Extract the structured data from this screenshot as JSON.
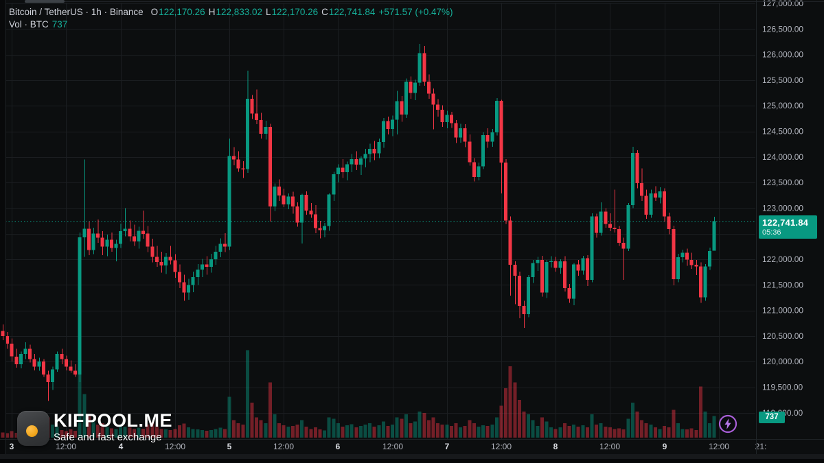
{
  "header": {
    "title": "Bitcoin / TetherUS · 1h · Binance",
    "o_label": "O",
    "o_value": "122,170.26",
    "h_label": "H",
    "h_value": "122,833.02",
    "l_label": "L",
    "l_value": "122,170.26",
    "c_label": "C",
    "c_value": "122,741.84",
    "change": "+571.57 (+0.47%)",
    "vol_label": "Vol · BTC",
    "vol_value": "737"
  },
  "price_badge": {
    "price": "122,741.84",
    "countdown": "05:36"
  },
  "volume_badge": "737",
  "watermark": {
    "brand": "KIFPOOL.ME",
    "tagline": "Safe and fast exchange"
  },
  "colors": {
    "bg": "#0c0e0f",
    "grid": "#1b1e21",
    "up": "#089981",
    "down": "#f23645",
    "vol_up": "rgba(8,153,129,0.45)",
    "vol_down": "rgba(242,54,69,0.45)",
    "axis_text": "#b2b5be",
    "axis_day_text": "#d8dbe0",
    "badge": "#089981",
    "price_line": "#089981",
    "accent_purple": "#a95fd8",
    "watermark_orange": "#f2a71e"
  },
  "chart_data": {
    "type": "candlestick",
    "title": "Bitcoin / TetherUS",
    "exchange": "Binance",
    "interval": "1h",
    "last_price": 122741.84,
    "last_volume_btc": 737,
    "y_axis": {
      "min": 119000,
      "max": 127000,
      "step": 500
    },
    "y_ticks": [
      {
        "v": 127000,
        "label": "127,000.00"
      },
      {
        "v": 126500,
        "label": "126,500.00"
      },
      {
        "v": 126000,
        "label": "126,000.00"
      },
      {
        "v": 125500,
        "label": "125,500.00"
      },
      {
        "v": 125000,
        "label": "125,000.00"
      },
      {
        "v": 124500,
        "label": "124,500.00"
      },
      {
        "v": 124000,
        "label": "124,000.00"
      },
      {
        "v": 123500,
        "label": "123,500.00"
      },
      {
        "v": 123000,
        "label": "123,000.00"
      },
      {
        "v": 122500,
        "label": "122,500.00"
      },
      {
        "v": 122000,
        "label": "122,000.00"
      },
      {
        "v": 121500,
        "label": "121,500.00"
      },
      {
        "v": 121000,
        "label": "121,000.00"
      },
      {
        "v": 120500,
        "label": "120,500.00"
      },
      {
        "v": 120000,
        "label": "120,000.00"
      },
      {
        "v": 119500,
        "label": "119,500.00"
      },
      {
        "v": 119000,
        "label": "119,000.00"
      }
    ],
    "time_ticks": [
      {
        "label": "3",
        "x": 17,
        "day": true,
        "grid": true
      },
      {
        "label": "12:00",
        "x": 96,
        "day": false,
        "grid": true
      },
      {
        "label": "4",
        "x": 176,
        "day": true,
        "grid": true
      },
      {
        "label": "12:00",
        "x": 255,
        "day": false,
        "grid": true
      },
      {
        "label": "5",
        "x": 334,
        "day": true,
        "grid": true
      },
      {
        "label": "12:00",
        "x": 413,
        "day": false,
        "grid": true
      },
      {
        "label": "6",
        "x": 492,
        "day": true,
        "grid": true
      },
      {
        "label": "12:00",
        "x": 572,
        "day": false,
        "grid": true
      },
      {
        "label": "7",
        "x": 651,
        "day": true,
        "grid": true
      },
      {
        "label": "12:00",
        "x": 730,
        "day": false,
        "grid": true
      },
      {
        "label": "8",
        "x": 809,
        "day": true,
        "grid": true
      },
      {
        "label": "12:00",
        "x": 888,
        "day": false,
        "grid": true
      },
      {
        "label": "9",
        "x": 968,
        "day": true,
        "grid": true
      },
      {
        "label": "12:00",
        "x": 1047,
        "day": false,
        "grid": true
      },
      {
        "label": "21:",
        "x": 1108,
        "day": false,
        "grid": false
      }
    ],
    "scale": {
      "refPrice": 122741.84,
      "refY": 322.7,
      "pxPerUnit": 0.0746,
      "x0": 4,
      "dx": 6.6,
      "candleWidth": 5,
      "volBaseY": 638,
      "volPxPerBtc": 0.0425,
      "paneLeft": 8,
      "paneRight": 1100,
      "paneBottom": 640
    },
    "candles": [
      [
        120600,
        120730,
        120420,
        120500,
        180
      ],
      [
        120500,
        120580,
        120250,
        120350,
        150
      ],
      [
        120350,
        120450,
        120000,
        120100,
        220
      ],
      [
        120100,
        120250,
        119880,
        119950,
        160
      ],
      [
        119950,
        120200,
        119870,
        120150,
        140
      ],
      [
        120150,
        120380,
        120050,
        120250,
        200
      ],
      [
        120250,
        120330,
        119980,
        120050,
        170
      ],
      [
        120050,
        120150,
        119830,
        119900,
        250
      ],
      [
        119900,
        120080,
        119820,
        120000,
        190
      ],
      [
        120000,
        120050,
        119700,
        119750,
        300
      ],
      [
        119750,
        119820,
        119230,
        119600,
        700
      ],
      [
        119600,
        119900,
        119450,
        119850,
        450
      ],
      [
        119850,
        120200,
        119800,
        120150,
        380
      ],
      [
        120150,
        120250,
        119950,
        120050,
        260
      ],
      [
        120050,
        120120,
        119830,
        119900,
        220
      ],
      [
        119900,
        120020,
        119780,
        119820,
        280
      ],
      [
        119820,
        119950,
        119700,
        119750,
        240
      ],
      [
        119750,
        122520,
        119600,
        122430,
        2600
      ],
      [
        122430,
        123950,
        122050,
        122600,
        1500
      ],
      [
        122600,
        122740,
        122080,
        122180,
        800
      ],
      [
        122180,
        122620,
        122100,
        122500,
        600
      ],
      [
        122500,
        122780,
        122320,
        122420,
        450
      ],
      [
        122420,
        122550,
        122080,
        122250,
        500
      ],
      [
        122250,
        122480,
        122060,
        122380,
        380
      ],
      [
        122380,
        122520,
        122150,
        122220,
        320
      ],
      [
        122220,
        122380,
        121960,
        122300,
        300
      ],
      [
        122300,
        122700,
        122220,
        122550,
        420
      ],
      [
        122550,
        123000,
        122450,
        122600,
        380
      ],
      [
        122600,
        122760,
        122350,
        122450,
        350
      ],
      [
        122450,
        122680,
        122260,
        122350,
        300
      ],
      [
        122350,
        122640,
        122210,
        122560,
        340
      ],
      [
        122560,
        122950,
        122400,
        122500,
        310
      ],
      [
        122500,
        122650,
        122140,
        122250,
        450
      ],
      [
        122250,
        122400,
        121940,
        122050,
        520
      ],
      [
        122050,
        122260,
        121850,
        121950,
        380
      ],
      [
        121950,
        122150,
        121740,
        121880,
        300
      ],
      [
        121880,
        122120,
        121710,
        122050,
        280
      ],
      [
        122050,
        122260,
        121900,
        121980,
        260
      ],
      [
        121980,
        122100,
        121640,
        121750,
        300
      ],
      [
        121750,
        121900,
        121440,
        121550,
        420
      ],
      [
        121550,
        121700,
        121190,
        121350,
        480
      ],
      [
        121350,
        121620,
        121210,
        121500,
        350
      ],
      [
        121500,
        121760,
        121360,
        121650,
        300
      ],
      [
        121650,
        121910,
        121500,
        121800,
        280
      ],
      [
        121800,
        122010,
        121650,
        121900,
        260
      ],
      [
        121900,
        122060,
        121700,
        121850,
        240
      ],
      [
        121850,
        122110,
        121740,
        122000,
        260
      ],
      [
        122000,
        122260,
        121890,
        122150,
        300
      ],
      [
        122150,
        122410,
        122040,
        122300,
        340
      ],
      [
        122300,
        122510,
        122140,
        122250,
        300
      ],
      [
        122250,
        124360,
        122180,
        124020,
        1400
      ],
      [
        124020,
        124190,
        123840,
        123950,
        600
      ],
      [
        123950,
        124110,
        123710,
        123780,
        500
      ],
      [
        123780,
        123920,
        123590,
        123760,
        450
      ],
      [
        123760,
        125690,
        123690,
        125140,
        3000
      ],
      [
        125140,
        125210,
        124740,
        124850,
        1200
      ],
      [
        124850,
        125320,
        124640,
        124720,
        700
      ],
      [
        124720,
        124860,
        124360,
        124450,
        600
      ],
      [
        124450,
        124710,
        124340,
        124590,
        500
      ],
      [
        124590,
        124650,
        122740,
        123030,
        1900
      ],
      [
        123030,
        123480,
        122940,
        123420,
        800
      ],
      [
        123420,
        123560,
        123140,
        123250,
        500
      ],
      [
        123250,
        123380,
        123020,
        123070,
        420
      ],
      [
        123070,
        123290,
        122980,
        123230,
        380
      ],
      [
        123230,
        123320,
        122890,
        123030,
        400
      ],
      [
        123030,
        123110,
        122640,
        122720,
        450
      ],
      [
        122720,
        123280,
        122310,
        123260,
        600
      ],
      [
        123260,
        123330,
        122870,
        122950,
        380
      ],
      [
        122950,
        123100,
        122810,
        122880,
        300
      ],
      [
        122880,
        123060,
        122510,
        122610,
        350
      ],
      [
        122610,
        122750,
        122410,
        122570,
        280
      ],
      [
        122570,
        122710,
        122430,
        122650,
        250
      ],
      [
        122650,
        123290,
        122560,
        123270,
        700
      ],
      [
        123270,
        123710,
        123140,
        123660,
        650
      ],
      [
        123660,
        123860,
        123500,
        123790,
        500
      ],
      [
        123790,
        123960,
        123590,
        123700,
        380
      ],
      [
        123700,
        123910,
        123540,
        123860,
        420
      ],
      [
        123860,
        124060,
        123700,
        123960,
        460
      ],
      [
        123960,
        124110,
        123740,
        123850,
        350
      ],
      [
        123850,
        124010,
        123650,
        123970,
        400
      ],
      [
        123970,
        124160,
        123800,
        124060,
        450
      ],
      [
        124060,
        124260,
        123900,
        124160,
        500
      ],
      [
        124160,
        124310,
        123940,
        124070,
        380
      ],
      [
        124070,
        124360,
        123980,
        124290,
        420
      ],
      [
        124290,
        124760,
        124180,
        124700,
        550
      ],
      [
        124700,
        124790,
        124440,
        124550,
        400
      ],
      [
        124550,
        124810,
        124410,
        124730,
        450
      ],
      [
        124730,
        125290,
        124440,
        125090,
        700
      ],
      [
        125090,
        125190,
        124690,
        124830,
        650
      ],
      [
        124830,
        125530,
        124760,
        125470,
        800
      ],
      [
        125470,
        125570,
        125140,
        125250,
        500
      ],
      [
        125250,
        125510,
        125110,
        125450,
        550
      ],
      [
        125450,
        126210,
        125390,
        126030,
        900
      ],
      [
        126030,
        126170,
        125390,
        125470,
        850
      ],
      [
        125470,
        125610,
        125140,
        125240,
        600
      ],
      [
        125240,
        125340,
        124540,
        125020,
        700
      ],
      [
        125020,
        125130,
        124790,
        124920,
        500
      ],
      [
        124920,
        125010,
        124590,
        124680,
        450
      ],
      [
        124680,
        124900,
        124560,
        124820,
        450
      ],
      [
        124820,
        124880,
        124570,
        124660,
        400
      ],
      [
        124660,
        124720,
        124270,
        124380,
        500
      ],
      [
        124380,
        124650,
        124280,
        124560,
        350
      ],
      [
        124560,
        124640,
        124190,
        124300,
        400
      ],
      [
        124300,
        124440,
        123830,
        123900,
        600
      ],
      [
        123900,
        123980,
        123520,
        123610,
        500
      ],
      [
        123610,
        123890,
        123540,
        123820,
        380
      ],
      [
        123820,
        124480,
        123760,
        124430,
        420
      ],
      [
        124430,
        124560,
        124180,
        124300,
        400
      ],
      [
        124300,
        124550,
        124200,
        124480,
        450
      ],
      [
        124480,
        125150,
        124420,
        125100,
        700
      ],
      [
        125100,
        125120,
        123290,
        123890,
        1100
      ],
      [
        123890,
        123960,
        122690,
        122760,
        1700
      ],
      [
        122760,
        122840,
        121290,
        121890,
        2450
      ],
      [
        121890,
        121960,
        121120,
        121680,
        1900
      ],
      [
        121680,
        121760,
        120850,
        121090,
        1300
      ],
      [
        121090,
        121190,
        120660,
        120930,
        900
      ],
      [
        120930,
        121690,
        120870,
        121650,
        800
      ],
      [
        121650,
        121990,
        121540,
        121930,
        600
      ],
      [
        121930,
        122050,
        121770,
        121990,
        400
      ],
      [
        121990,
        122070,
        121270,
        121350,
        700
      ],
      [
        121350,
        121990,
        121240,
        121950,
        550
      ],
      [
        121950,
        122060,
        121840,
        121970,
        350
      ],
      [
        121970,
        122050,
        121760,
        121830,
        300
      ],
      [
        121830,
        122000,
        121720,
        121960,
        350
      ],
      [
        121960,
        122060,
        121370,
        121440,
        500
      ],
      [
        121440,
        121520,
        121150,
        121230,
        400
      ],
      [
        121230,
        121930,
        121100,
        121900,
        450
      ],
      [
        121900,
        121990,
        121680,
        121780,
        380
      ],
      [
        121780,
        122070,
        121700,
        122020,
        420
      ],
      [
        122020,
        122080,
        121480,
        121600,
        350
      ],
      [
        121600,
        122900,
        121550,
        122840,
        800
      ],
      [
        122840,
        122890,
        122420,
        122520,
        450
      ],
      [
        122520,
        123110,
        122460,
        122930,
        500
      ],
      [
        122930,
        123000,
        122620,
        122690,
        380
      ],
      [
        122690,
        122900,
        122550,
        122620,
        350
      ],
      [
        122620,
        123360,
        122520,
        122590,
        300
      ],
      [
        122590,
        122650,
        122260,
        122320,
        320
      ],
      [
        122320,
        122420,
        121600,
        122210,
        280
      ],
      [
        122210,
        123100,
        122160,
        123060,
        650
      ],
      [
        123060,
        124200,
        123000,
        124080,
        1200
      ],
      [
        124080,
        124130,
        123390,
        123490,
        900
      ],
      [
        123490,
        123780,
        123140,
        123240,
        600
      ],
      [
        123240,
        123360,
        122790,
        122870,
        500
      ],
      [
        122870,
        123360,
        122810,
        123290,
        450
      ],
      [
        123290,
        123430,
        123140,
        123210,
        350
      ],
      [
        123210,
        123410,
        123090,
        123330,
        300
      ],
      [
        123330,
        123390,
        122740,
        122840,
        400
      ],
      [
        122840,
        122910,
        122490,
        122590,
        350
      ],
      [
        122590,
        122660,
        121490,
        121610,
        950
      ],
      [
        121610,
        122110,
        121550,
        122040,
        500
      ],
      [
        122040,
        122190,
        121940,
        122130,
        300
      ],
      [
        122130,
        122210,
        121870,
        121990,
        280
      ],
      [
        121990,
        122130,
        121810,
        121890,
        320
      ],
      [
        121890,
        121990,
        121690,
        121860,
        260
      ],
      [
        121860,
        121940,
        121150,
        121260,
        1750
      ],
      [
        121260,
        121910,
        121190,
        121860,
        900
      ],
      [
        121860,
        122230,
        121790,
        122160,
        500
      ],
      [
        122170.26,
        122833.02,
        122170.26,
        122741.84,
        737
      ]
    ]
  }
}
